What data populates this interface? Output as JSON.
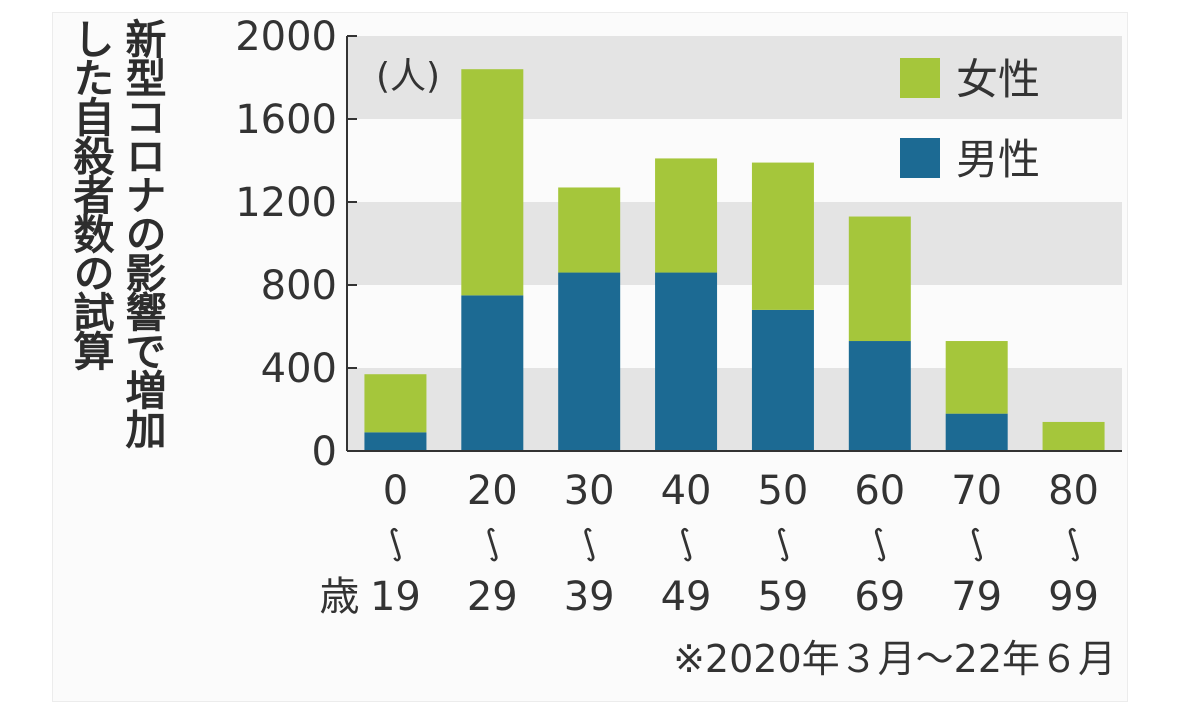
{
  "chart_data": {
    "type": "bar",
    "stacked": true,
    "title_lines": [
      "新型コロナの影響で増加",
      "した自殺者数の試算"
    ],
    "unit_label": "(人)",
    "categories": [
      {
        "top": "0",
        "bottom": "19"
      },
      {
        "top": "20",
        "bottom": "29"
      },
      {
        "top": "30",
        "bottom": "39"
      },
      {
        "top": "40",
        "bottom": "49"
      },
      {
        "top": "50",
        "bottom": "59"
      },
      {
        "top": "60",
        "bottom": "69"
      },
      {
        "top": "70",
        "bottom": "79"
      },
      {
        "top": "80",
        "bottom": "99"
      }
    ],
    "range_mark": "∫",
    "age_suffix": "歳",
    "series": [
      {
        "name": "男性",
        "color": "#1c6a93",
        "values": [
          90,
          750,
          860,
          860,
          680,
          530,
          180,
          0
        ]
      },
      {
        "name": "女性",
        "color": "#a5c63b",
        "values": [
          280,
          1090,
          410,
          550,
          710,
          600,
          350,
          140
        ]
      }
    ],
    "legend_order": [
      1,
      0
    ],
    "y_ticks": [
      0,
      400,
      800,
      1200,
      1600,
      2000
    ],
    "ylim": [
      0,
      2000
    ],
    "grid_bands": true,
    "band_color": "#e4e4e4",
    "legend_position": "top-right",
    "note": "※2020年３月〜22年６月"
  }
}
